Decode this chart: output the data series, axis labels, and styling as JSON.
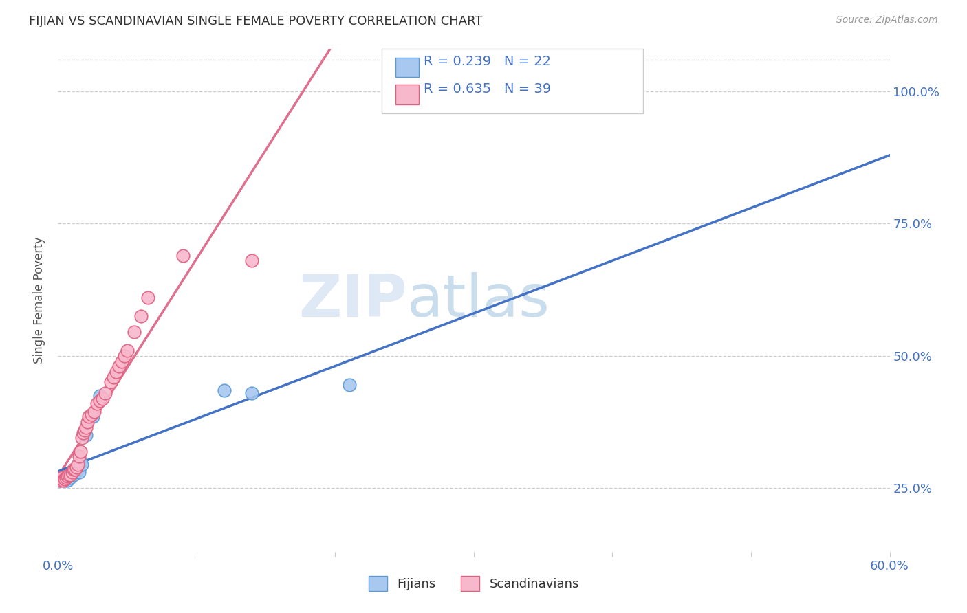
{
  "title": "FIJIAN VS SCANDINAVIAN SINGLE FEMALE POVERTY CORRELATION CHART",
  "source": "Source: ZipAtlas.com",
  "ylabel": "Single Female Poverty",
  "legend_label1": "Fijians",
  "legend_label2": "Scandinavians",
  "R1": "0.239",
  "N1": "22",
  "R2": "0.635",
  "N2": "39",
  "color_fijian_fill": "#a8c8f0",
  "color_fijian_edge": "#5b9bd5",
  "color_scandinavian_fill": "#f7b8cc",
  "color_scandinavian_edge": "#e06080",
  "color_fijian_line": "#4472c4",
  "color_scandinavian_line": "#e07090",
  "color_dashed": "#a0b8d8",
  "watermark_zip": "ZIP",
  "watermark_atlas": "atlas",
  "fijian_x": [
    0.001,
    0.003,
    0.004,
    0.005,
    0.006,
    0.007,
    0.008,
    0.009,
    0.01,
    0.011,
    0.012,
    0.013,
    0.014,
    0.015,
    0.016,
    0.017,
    0.02,
    0.025,
    0.03,
    0.12,
    0.14,
    0.21
  ],
  "fijian_y": [
    0.265,
    0.27,
    0.27,
    0.265,
    0.27,
    0.265,
    0.275,
    0.27,
    0.275,
    0.275,
    0.28,
    0.285,
    0.285,
    0.28,
    0.3,
    0.295,
    0.35,
    0.385,
    0.425,
    0.435,
    0.43,
    0.445
  ],
  "scandinavian_x": [
    0.002,
    0.003,
    0.004,
    0.005,
    0.006,
    0.007,
    0.008,
    0.009,
    0.01,
    0.011,
    0.012,
    0.013,
    0.014,
    0.015,
    0.016,
    0.017,
    0.018,
    0.019,
    0.02,
    0.021,
    0.022,
    0.024,
    0.026,
    0.028,
    0.03,
    0.032,
    0.034,
    0.038,
    0.04,
    0.042,
    0.044,
    0.046,
    0.048,
    0.05,
    0.055,
    0.06,
    0.065,
    0.09,
    0.14
  ],
  "scandinavian_y": [
    0.265,
    0.27,
    0.265,
    0.268,
    0.27,
    0.272,
    0.275,
    0.275,
    0.28,
    0.285,
    0.285,
    0.29,
    0.295,
    0.31,
    0.32,
    0.345,
    0.355,
    0.36,
    0.365,
    0.375,
    0.385,
    0.39,
    0.395,
    0.41,
    0.415,
    0.42,
    0.43,
    0.45,
    0.46,
    0.47,
    0.48,
    0.49,
    0.5,
    0.51,
    0.545,
    0.575,
    0.61,
    0.69,
    0.68
  ],
  "xlim": [
    0.0,
    0.6
  ],
  "ylim": [
    0.13,
    1.08
  ],
  "yticks": [
    0.25,
    0.5,
    0.75,
    1.0
  ],
  "ytick_labels": [
    "25.0%",
    "50.0%",
    "75.0%",
    "100.0%"
  ],
  "xtick_left_label": "0.0%",
  "xtick_right_label": "60.0%",
  "xtick_bottom_positions": [
    0.0,
    0.1,
    0.2,
    0.3,
    0.4,
    0.5,
    0.6
  ]
}
